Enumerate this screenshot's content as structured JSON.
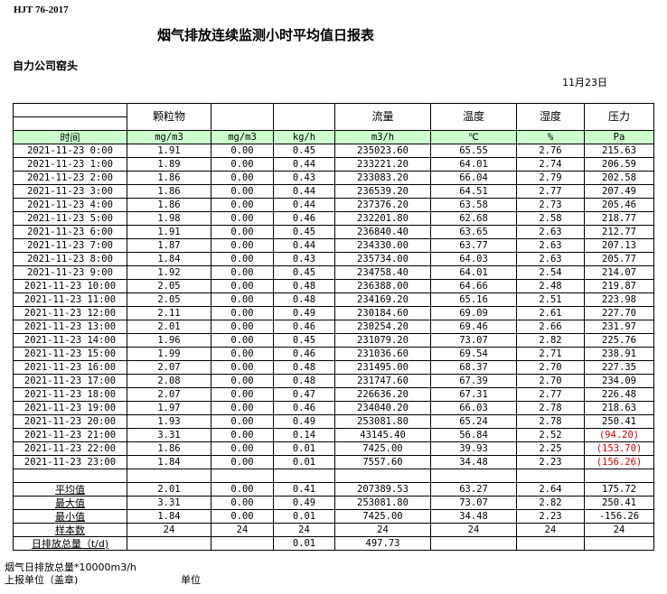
{
  "standard": "HJT  76-2017",
  "title": "烟气排放连续监测小时平均值日报表",
  "company": "自力公司窑头",
  "date": "11月23日",
  "columns": [
    "",
    "颗粒物",
    "",
    "",
    "流量",
    "温度",
    "湿度",
    "压力"
  ],
  "units": [
    "时间",
    "mg/m3",
    "mg/m3",
    "kg/h",
    "m3/h",
    "℃",
    "%",
    "Pa"
  ],
  "negative_color": "#e00000",
  "green_header_color": "#ccffcc",
  "rows": [
    [
      "2021-11-23 0:00",
      "1.91",
      "0.00",
      "0.45",
      "235023.60",
      "65.55",
      "2.76",
      "215.63"
    ],
    [
      "2021-11-23 1:00",
      "1.89",
      "0.00",
      "0.44",
      "233221.20",
      "64.01",
      "2.74",
      "206.59"
    ],
    [
      "2021-11-23 2:00",
      "1.86",
      "0.00",
      "0.43",
      "233083.20",
      "66.04",
      "2.79",
      "202.58"
    ],
    [
      "2021-11-23 3:00",
      "1.86",
      "0.00",
      "0.44",
      "236539.20",
      "64.51",
      "2.77",
      "207.49"
    ],
    [
      "2021-11-23 4:00",
      "1.86",
      "0.00",
      "0.44",
      "237376.20",
      "63.58",
      "2.73",
      "205.46"
    ],
    [
      "2021-11-23 5:00",
      "1.98",
      "0.00",
      "0.46",
      "232201.80",
      "62.68",
      "2.58",
      "218.77"
    ],
    [
      "2021-11-23 6:00",
      "1.91",
      "0.00",
      "0.45",
      "236840.40",
      "63.65",
      "2.63",
      "212.77"
    ],
    [
      "2021-11-23 7:00",
      "1.87",
      "0.00",
      "0.44",
      "234330.00",
      "63.77",
      "2.63",
      "207.13"
    ],
    [
      "2021-11-23 8:00",
      "1.84",
      "0.00",
      "0.43",
      "235734.00",
      "64.03",
      "2.63",
      "205.77"
    ],
    [
      "2021-11-23 9:00",
      "1.92",
      "0.00",
      "0.45",
      "234758.40",
      "64.01",
      "2.54",
      "214.07"
    ],
    [
      "2021-11-23 10:00",
      "2.05",
      "0.00",
      "0.48",
      "236388.00",
      "64.66",
      "2.48",
      "219.87"
    ],
    [
      "2021-11-23 11:00",
      "2.05",
      "0.00",
      "0.48",
      "234169.20",
      "65.16",
      "2.51",
      "223.98"
    ],
    [
      "2021-11-23 12:00",
      "2.11",
      "0.00",
      "0.49",
      "230184.60",
      "69.09",
      "2.61",
      "227.70"
    ],
    [
      "2021-11-23 13:00",
      "2.01",
      "0.00",
      "0.46",
      "230254.20",
      "69.46",
      "2.66",
      "231.97"
    ],
    [
      "2021-11-23 14:00",
      "1.96",
      "0.00",
      "0.45",
      "231079.20",
      "73.07",
      "2.82",
      "225.76"
    ],
    [
      "2021-11-23 15:00",
      "1.99",
      "0.00",
      "0.46",
      "231036.60",
      "69.54",
      "2.71",
      "238.91"
    ],
    [
      "2021-11-23 16:00",
      "2.07",
      "0.00",
      "0.48",
      "231495.00",
      "68.37",
      "2.70",
      "227.35"
    ],
    [
      "2021-11-23 17:00",
      "2.08",
      "0.00",
      "0.48",
      "231747.60",
      "67.39",
      "2.70",
      "234.09"
    ],
    [
      "2021-11-23 18:00",
      "2.07",
      "0.00",
      "0.47",
      "226636.20",
      "67.31",
      "2.77",
      "226.48"
    ],
    [
      "2021-11-23 19:00",
      "1.97",
      "0.00",
      "0.46",
      "234040.20",
      "66.03",
      "2.78",
      "218.63"
    ],
    [
      "2021-11-23 20:00",
      "1.93",
      "0.00",
      "0.49",
      "253081.80",
      "65.24",
      "2.78",
      "250.41"
    ],
    [
      "2021-11-23 21:00",
      "3.31",
      "0.00",
      "0.14",
      "43145.40",
      "56.84",
      "2.52",
      "(94.20)"
    ],
    [
      "2021-11-23 22:00",
      "1.86",
      "0.00",
      "0.01",
      "7425.00",
      "39.93",
      "2.25",
      "(153.70)"
    ],
    [
      "2021-11-23 23:00",
      "1.84",
      "0.00",
      "0.01",
      "7557.60",
      "34.48",
      "2.23",
      "(156.26)"
    ]
  ],
  "summary": [
    [
      "平均值",
      "2.01",
      "0.00",
      "0.41",
      "207389.53",
      "63.27",
      "2.64",
      "175.72"
    ],
    [
      "最大值",
      "3.31",
      "0.00",
      "0.49",
      "253081.80",
      "73.07",
      "2.82",
      "250.41"
    ],
    [
      "最小值",
      "1.84",
      "0.00",
      "0.01",
      "7425.00",
      "34.48",
      "2.23",
      "-156.26"
    ],
    [
      "样本数",
      "24",
      "24",
      "24",
      "24",
      "24",
      "24",
      "24"
    ],
    [
      "日排放总量（t/d)",
      "",
      "",
      "0.01",
      "497.73",
      "",
      "",
      ""
    ]
  ],
  "footer": {
    "note": "烟气日排放总量*10000m3/h",
    "reporter": "上报单位（盖章)",
    "unit": "单位"
  }
}
